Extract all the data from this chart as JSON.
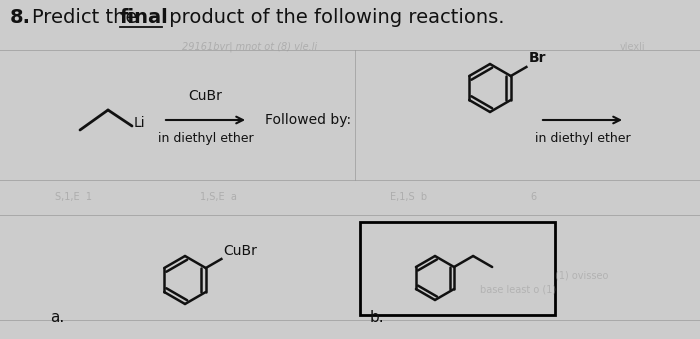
{
  "title_number": "8.",
  "title_text": "Predict the  product of the following reactions.",
  "final_word": "final",
  "reagent1_label": "CuBr",
  "reagent1_sub": "in diethyl ether",
  "followed_by": "Followed by:",
  "reagent2_sub": "in diethyl ether",
  "br_label": "Br",
  "cubr_label_a": "CuBr",
  "label_a": "a.",
  "label_b": "b.",
  "bg_color": "#cccccc",
  "box_color": "#000000",
  "text_color": "#111111",
  "wm_color": "#999999",
  "line_color": "#999999"
}
